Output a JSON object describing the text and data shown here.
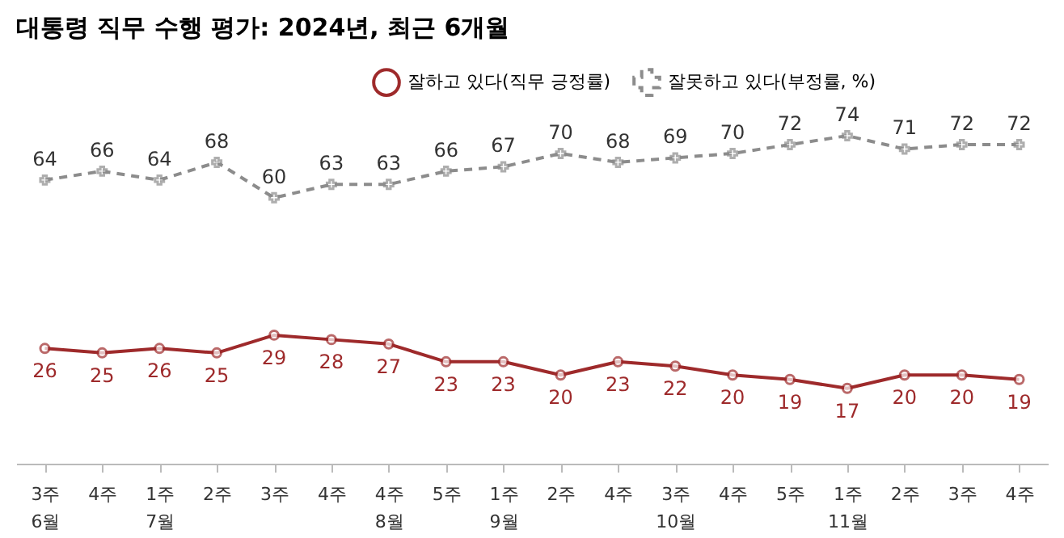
{
  "chart_data": {
    "type": "line",
    "title": "대통령 직무 수행 평가: 2024년, 최근 6개월",
    "categories": [
      "3주\n6월",
      "4주",
      "1주\n7월",
      "2주",
      "3주",
      "4주",
      "4주\n8월",
      "5주",
      "1주\n9월",
      "2주",
      "4주",
      "3주\n10월",
      "4주",
      "5주",
      "1주\n11월",
      "2주",
      "3주",
      "4주"
    ],
    "series": [
      {
        "name": "잘하고 있다(직무 긍정률)",
        "color": "#9e2a2b",
        "line_style": "solid",
        "marker": "circle",
        "values": [
          26,
          25,
          26,
          25,
          29,
          28,
          27,
          23,
          23,
          20,
          23,
          22,
          20,
          19,
          17,
          20,
          20,
          19
        ]
      },
      {
        "name": "잘못하고 있다(부정률, %)",
        "color": "#8c8c8c",
        "line_style": "dashed",
        "marker": "cross",
        "values": [
          64,
          66,
          64,
          68,
          60,
          63,
          63,
          66,
          67,
          70,
          68,
          69,
          70,
          72,
          74,
          71,
          72,
          72
        ]
      }
    ],
    "data_labels": true,
    "legend": "top right",
    "grid": false
  }
}
